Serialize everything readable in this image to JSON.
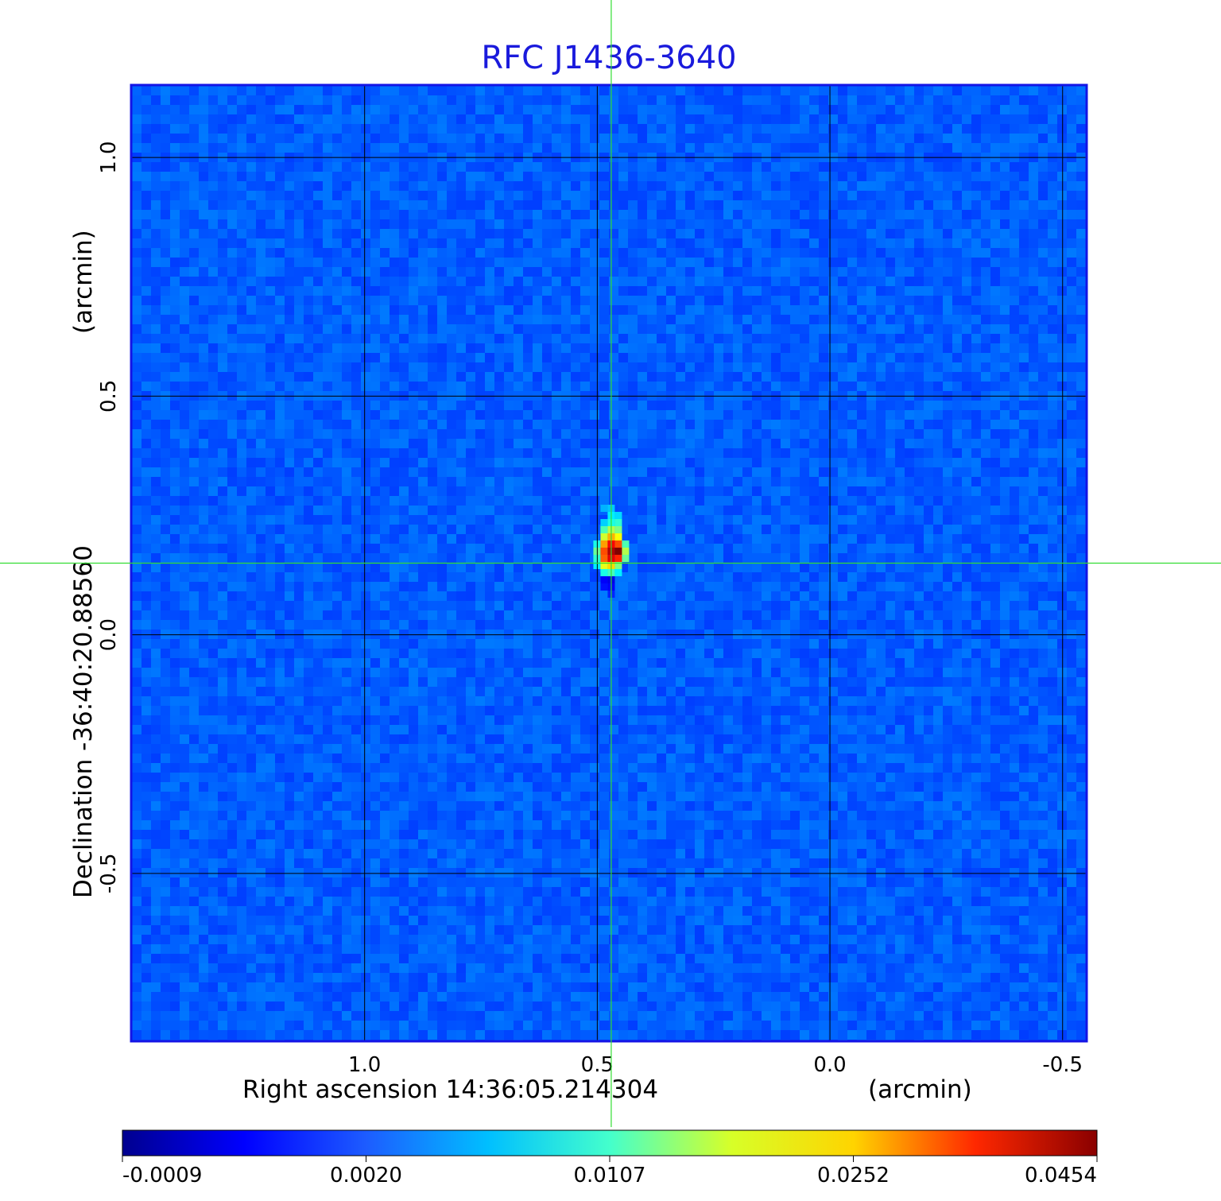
{
  "chart_data": {
    "type": "heatmap",
    "title": "RFC J1436-3640",
    "xlabel": "Right ascension  14:36:05.214304",
    "xunit": "(arcmin)",
    "ylabel": "Declination  -36:40:20.88560",
    "yunit": "(arcmin)",
    "xlim": [
      1.5,
      -0.55
    ],
    "ylim": [
      -0.85,
      1.15
    ],
    "x_ticks": [
      "1.0",
      "0.5",
      "0.0",
      "-0.5"
    ],
    "x_tick_values": [
      1.0,
      0.5,
      0.0,
      -0.5
    ],
    "y_ticks": [
      "1.0",
      "0.5",
      "0.0",
      "-0.5"
    ],
    "y_tick_values": [
      1.0,
      0.5,
      0.0,
      -0.5
    ],
    "grid": true,
    "colormap": "jet",
    "background_level": -0.0002,
    "crosshair": {
      "x": 0.47,
      "y": 0.15,
      "color": "#33dd33"
    },
    "source_peak": {
      "x": 0.47,
      "y": 0.16,
      "value": 0.0454
    },
    "colorbar": {
      "ticks": [
        "-0.0009",
        "0.0020",
        "0.0107",
        "0.0252",
        "0.0454"
      ],
      "tick_values": [
        -0.0009,
        0.002,
        0.0107,
        0.0252,
        0.0454
      ],
      "min": -0.0009,
      "max": 0.0454
    },
    "colors": {
      "title": "#1a1adc",
      "frame": "#1414e6",
      "grid": "#000000"
    }
  }
}
